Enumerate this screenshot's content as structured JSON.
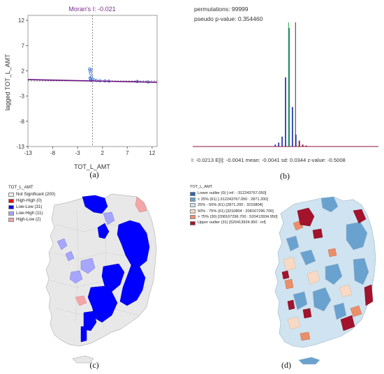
{
  "captions": {
    "a": "(a)",
    "b": "(b)",
    "c": "(c)",
    "d": "(d)"
  },
  "moran_scatter": {
    "title": "Moran's I: -0.021",
    "xlabel": "TOT_L_AMT",
    "ylabel": "lagged TOT_L_AMT",
    "xticks": [
      "-13",
      "-8",
      "-3",
      "2",
      "7",
      "12"
    ],
    "yticks": [
      "12",
      "7",
      "2",
      "-3",
      "-8",
      "-13"
    ]
  },
  "chart_data": [
    {
      "type": "scatter",
      "title": "Moran's I: -0.021",
      "xlabel": "TOT_L_AMT",
      "ylabel": "lagged TOT_L_AMT",
      "xlim": [
        -13,
        13
      ],
      "ylim": [
        -13,
        13
      ],
      "x": [
        -0.6,
        -0.5,
        -0.4,
        -0.3,
        -0.2,
        0.0,
        0.3,
        0.8,
        1.5,
        2.5,
        3.3,
        9.0,
        11.2,
        -0.5,
        -0.4,
        -0.3
      ],
      "y": [
        2.4,
        2.0,
        1.5,
        2.2,
        0.8,
        0.3,
        0.2,
        0.1,
        0.05,
        0.0,
        -0.05,
        -0.1,
        -0.2,
        0.6,
        0.4,
        0.1
      ],
      "regression_slope": -0.021,
      "colors": {
        "points": "#3a6fd0",
        "line": "#6a0d83"
      }
    },
    {
      "type": "bar",
      "title": "permutations: 99999",
      "subtitle": "pseudo p-value: 0.354460",
      "x": [
        -0.06,
        -0.05,
        -0.04,
        -0.03,
        -0.02,
        -0.01,
        0.0,
        0.01,
        0.02,
        0.03
      ],
      "values": [
        1,
        2,
        5,
        35,
        60,
        20,
        6,
        3,
        1,
        0.5
      ],
      "observed_I": -0.0213,
      "colors": {
        "bars": "#2a3bb0",
        "tail": "#8b1034",
        "observed": "#22aa44",
        "expected": "#333333"
      }
    }
  ],
  "permutation": {
    "line1": "permutations: 99999",
    "line2": "pseudo p-value: 0.354460",
    "footer": "I: -0.0213  E[I]: -0.0041   mean: -0.0041   sd: 0.0344   z-value: -0.5008"
  },
  "lisa_legend": {
    "title": "TOT_L_AMT",
    "items": [
      {
        "label": "Not Significant (200)",
        "color": "#eeeeee"
      },
      {
        "label": "High-High (0)",
        "color": "#ff0000"
      },
      {
        "label": "Low-Low (31)",
        "color": "#0000ff"
      },
      {
        "label": "Low-High (11)",
        "color": "#a6a6ff"
      },
      {
        "label": "High-Low (2)",
        "color": "#f4a6a6"
      }
    ]
  },
  "box_legend": {
    "title": "TOT_L_AMT",
    "items": [
      {
        "label": "Lower outlier (0)  [-inf : -312243767.050]",
        "color": "#2f65b0"
      },
      {
        "label": "< 25% (61)  [-312243767.050 : 2871.200]",
        "color": "#6aa2cf"
      },
      {
        "label": "25% - 50% (61)  [2871.200 : 3210804]",
        "color": "#cfe3f0"
      },
      {
        "label": "50% - 75% (61)  [3210804 : 208167296.700]",
        "color": "#f8d9c4"
      },
      {
        "label": "> 75% (30)  [208167296.700 : 520413934.950]",
        "color": "#eb8f6a"
      },
      {
        "label": "Upper outlier (31)  [520413934.950 : inf]",
        "color": "#a3132c"
      }
    ]
  }
}
